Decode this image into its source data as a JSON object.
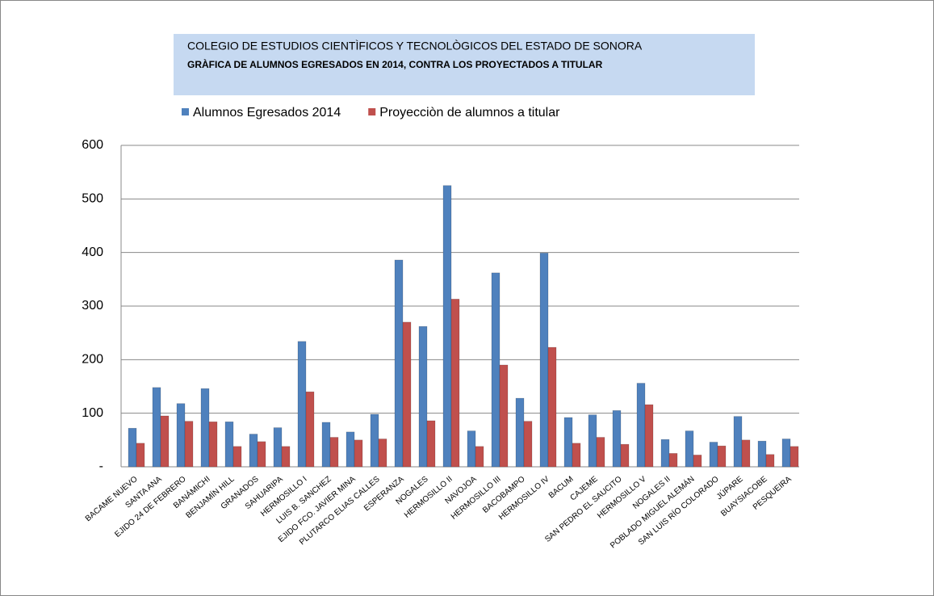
{
  "chart_data": {
    "type": "bar",
    "title": "COLEGIO DE ESTUDIOS CIENTÌFICOS Y TECNOLÒGICOS DEL ESTADO DE SONORA",
    "subtitle": "GRÀFICA  DE ALUMNOS EGRESADOS EN 2014, CONTRA LOS PROYECTADOS A TITULAR",
    "categories": [
      "BACAME NUEVO",
      "SANTA ANA",
      "EJIDO 24 DE FEBRERO",
      "BANÁMICHI",
      "BENJAMÍN HILL",
      "GRANADOS",
      "SAHUARIPA",
      "HERMOSILLO I",
      "LUIS B. SANCHEZ",
      "EJIDO FCO. JAVIER MINA",
      "PLUTARCO ELIAS CALLES",
      "ESPERANZA",
      "NOGALES",
      "HERMOSILLO II",
      "NAVOJOA",
      "HERMOSILLO III",
      "BACOBAMPO",
      "HERMOSILLO IV",
      "BACUM",
      "CAJEME",
      "SAN PEDRO EL SAUCITO",
      "HERMOSILLO V",
      "NOGALES II",
      "POBLADO MIGUEL ALEMÁN",
      "SAN LUIS RÍO COLORADO",
      "JÚPARE",
      "BUAYSIACOBE",
      "PESQUEIRA"
    ],
    "series": [
      {
        "name": "Alumnos Egresados 2014",
        "color": "#4f81bd",
        "values": [
          72,
          148,
          118,
          146,
          84,
          61,
          73,
          234,
          83,
          65,
          98,
          386,
          262,
          525,
          67,
          362,
          128,
          399,
          92,
          97,
          105,
          156,
          51,
          67,
          46,
          94,
          48,
          52
        ]
      },
      {
        "name": "Proyecciòn de alumnos a titular",
        "color": "#c0504d",
        "values": [
          44,
          95,
          85,
          84,
          38,
          47,
          38,
          140,
          55,
          50,
          52,
          270,
          86,
          313,
          38,
          190,
          85,
          223,
          44,
          55,
          42,
          116,
          25,
          22,
          39,
          50,
          23,
          38
        ]
      }
    ],
    "ylim": [
      0,
      600
    ],
    "yticks": [
      {
        "value": 0,
        "label": "-"
      },
      100,
      200,
      300,
      400,
      500,
      600
    ],
    "grid": true,
    "legend": "top"
  }
}
